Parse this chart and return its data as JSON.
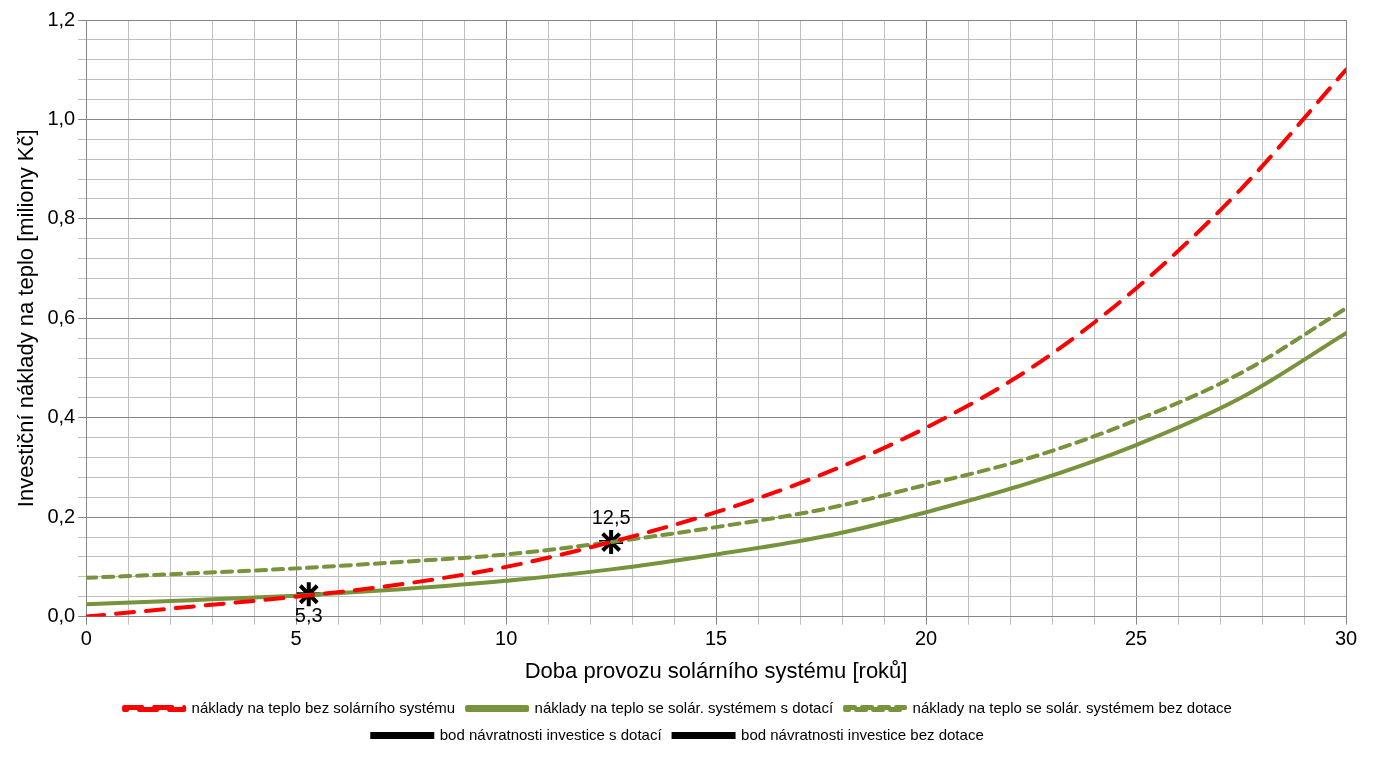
{
  "chart_data": {
    "type": "line",
    "xlabel": "Doba provozu solárního systému [roků]",
    "ylabel": "Investiční náklady na teplo [miliony Kč]",
    "x": [
      0,
      2.5,
      5,
      7.5,
      10,
      12.5,
      15,
      17.5,
      20,
      22.5,
      25,
      27.5,
      30
    ],
    "series": [
      {
        "name": "náklady na teplo bez solárního systému",
        "color": "#ff0000",
        "line_style": "dashed",
        "marker": "none",
        "values": [
          0.0,
          0.02,
          0.04,
          0.065,
          0.1,
          0.15,
          0.21,
          0.285,
          0.38,
          0.5,
          0.66,
          0.86,
          1.1
        ]
      },
      {
        "name": "náklady na teplo se solár. systémem s dotací",
        "color": "#77933c",
        "line_style": "solid",
        "marker": "none",
        "values": [
          0.025,
          0.033,
          0.042,
          0.055,
          0.072,
          0.095,
          0.125,
          0.16,
          0.21,
          0.27,
          0.345,
          0.44,
          0.57
        ]
      },
      {
        "name": "náklady na teplo se solár. systémem bez dotace",
        "color": "#77933c",
        "line_style": "dotted",
        "marker": "none",
        "values": [
          0.078,
          0.087,
          0.097,
          0.11,
          0.125,
          0.15,
          0.18,
          0.215,
          0.265,
          0.32,
          0.395,
          0.49,
          0.62
        ]
      },
      {
        "name": "bod návratnosti investice s dotací",
        "type": "scatter",
        "color": "#000000",
        "marker": "cross",
        "x": [
          5.3
        ],
        "values": [
          0.045
        ]
      },
      {
        "name": "bod návratnosti investice bez dotace",
        "type": "scatter",
        "color": "#000000",
        "marker": "cross",
        "x": [
          12.5
        ],
        "values": [
          0.15
        ]
      }
    ],
    "annotations": [
      {
        "text": "5,3",
        "x": 5.3,
        "y": 0.045
      },
      {
        "text": "12,5",
        "x": 12.5,
        "y": 0.15
      }
    ],
    "xlim": [
      0,
      30
    ],
    "xticks": [
      0,
      {
        "value": 1,
        "label": null
      },
      {
        "value": 2,
        "label": null
      },
      {
        "value": 3,
        "label": null
      },
      {
        "value": 4,
        "label": null
      },
      5,
      {
        "value": 6,
        "label": null
      },
      {
        "value": 7,
        "label": null
      },
      {
        "value": 8,
        "label": null
      },
      {
        "value": 9,
        "label": null
      },
      10,
      {
        "value": 11,
        "label": null
      },
      {
        "value": 12,
        "label": null
      },
      {
        "value": 13,
        "label": null
      },
      {
        "value": 14,
        "label": null
      },
      15,
      {
        "value": 16,
        "label": null
      },
      {
        "value": 17,
        "label": null
      },
      {
        "value": 18,
        "label": null
      },
      {
        "value": 19,
        "label": null
      },
      20,
      {
        "value": 21,
        "label": null
      },
      {
        "value": 22,
        "label": null
      },
      {
        "value": 23,
        "label": null
      },
      {
        "value": 24,
        "label": null
      },
      25,
      {
        "value": 26,
        "label": null
      },
      {
        "value": 27,
        "label": null
      },
      {
        "value": 28,
        "label": null
      },
      {
        "value": 29,
        "label": null
      },
      30
    ],
    "ylim": [
      0,
      1.2
    ],
    "yticks": [
      {
        "value": 0,
        "label": "0,0"
      },
      {
        "value": 0.04,
        "label": null
      },
      {
        "value": 0.08,
        "label": null
      },
      {
        "value": 0.12,
        "label": null
      },
      {
        "value": 0.16,
        "label": null
      },
      {
        "value": 0.2,
        "label": "0,2"
      },
      {
        "value": 0.24,
        "label": null
      },
      {
        "value": 0.28,
        "label": null
      },
      {
        "value": 0.32,
        "label": null
      },
      {
        "value": 0.36,
        "label": null
      },
      {
        "value": 0.4,
        "label": "0,4"
      },
      {
        "value": 0.44,
        "label": null
      },
      {
        "value": 0.48,
        "label": null
      },
      {
        "value": 0.52,
        "label": null
      },
      {
        "value": 0.56,
        "label": null
      },
      {
        "value": 0.6,
        "label": "0,6"
      },
      {
        "value": 0.64,
        "label": null
      },
      {
        "value": 0.68,
        "label": null
      },
      {
        "value": 0.72,
        "label": null
      },
      {
        "value": 0.76,
        "label": null
      },
      {
        "value": 0.8,
        "label": "0,8"
      },
      {
        "value": 0.84,
        "label": null
      },
      {
        "value": 0.88,
        "label": null
      },
      {
        "value": 0.92,
        "label": null
      },
      {
        "value": 0.96,
        "label": null
      },
      {
        "value": 1.0,
        "label": "1,0"
      },
      {
        "value": 1.04,
        "label": null
      },
      {
        "value": 1.08,
        "label": null
      },
      {
        "value": 1.12,
        "label": null
      },
      {
        "value": 1.16,
        "label": null
      },
      {
        "value": 1.2,
        "label": "1,2"
      }
    ],
    "grid": true,
    "legend": "bottom"
  }
}
